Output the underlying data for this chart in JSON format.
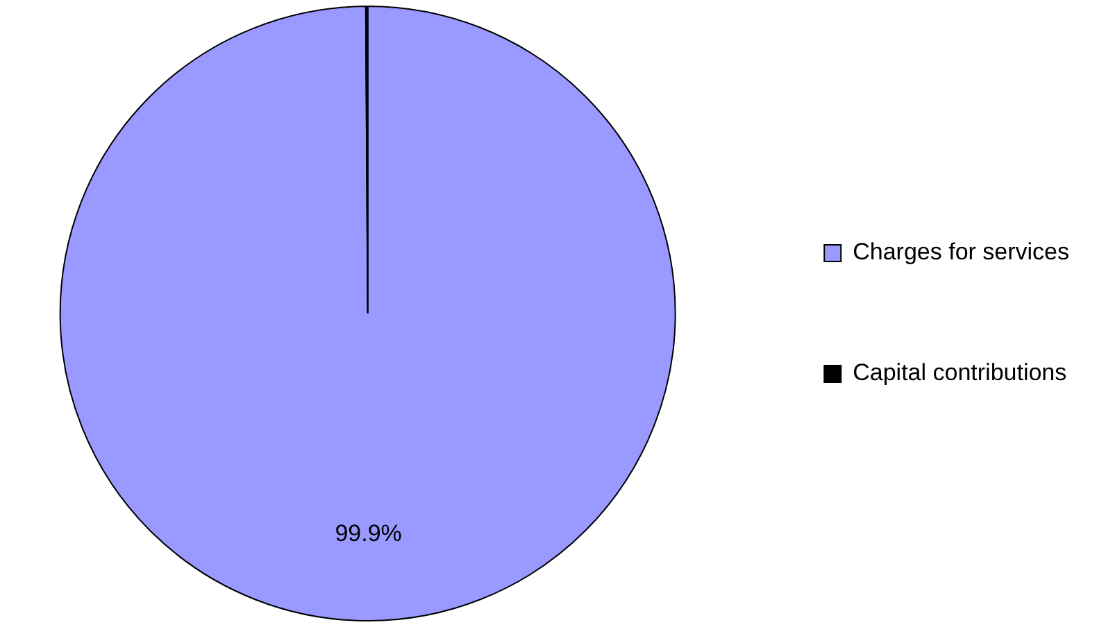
{
  "chart_data": {
    "type": "pie",
    "categories": [
      "Charges for services",
      "Capital contributions"
    ],
    "values": [
      99.9,
      0.1
    ],
    "colors": [
      "#9999ff",
      "#000000"
    ],
    "value_labels": [
      "99.9%",
      null
    ],
    "legend": "right"
  }
}
